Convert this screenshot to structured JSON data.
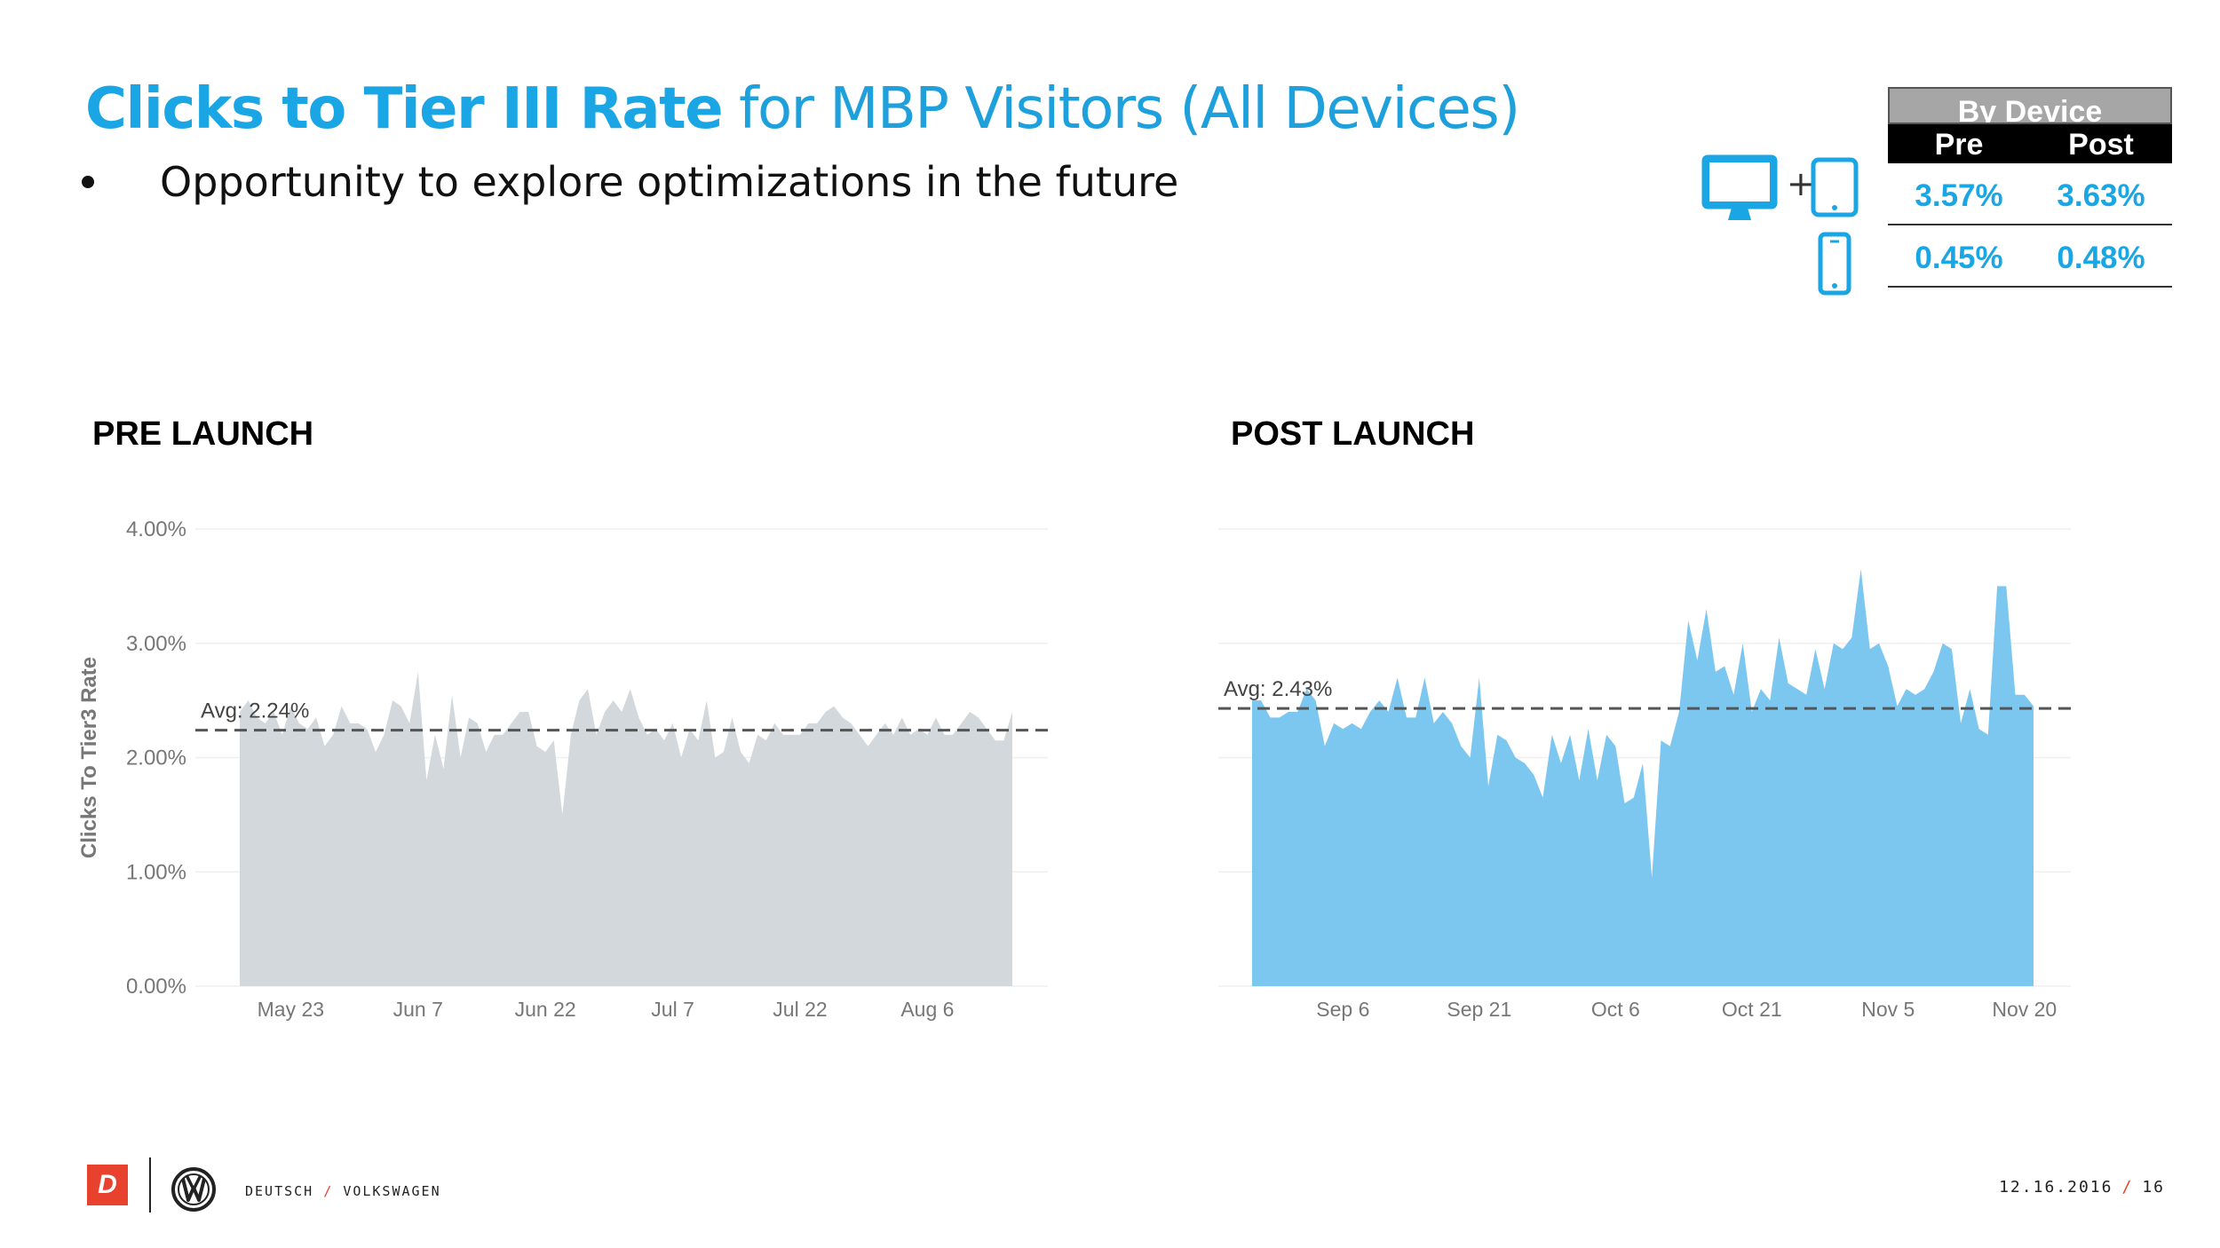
{
  "slide": {
    "title_bold": "Clicks to Tier III Rate",
    "title_rest": " for MBP Visitors (All Devices)",
    "bullet": "Opportunity to explore optimizations in the future"
  },
  "device_table": {
    "header": "By Device",
    "col_pre": "Pre",
    "col_post": "Post",
    "plus": "+",
    "rows": [
      {
        "device": "desktop-tablet",
        "pre": "3.57%",
        "post": "3.63%"
      },
      {
        "device": "mobile",
        "pre": "0.45%",
        "post": "0.48%"
      }
    ]
  },
  "colors": {
    "accent": "#1aa6e4",
    "pre_fill": "#d2d8db",
    "post_fill": "#7cc7f0",
    "footer_red": "#e8412e"
  },
  "labels": {
    "pre": "PRE LAUNCH",
    "post": "POST LAUNCH"
  },
  "chart_data": [
    {
      "type": "area",
      "title": "PRE LAUNCH",
      "ylabel": "Clicks To Tier3 Rate",
      "xlabel": "",
      "ylim": [
        0,
        4
      ],
      "yticks": [
        0,
        1,
        2,
        3,
        4
      ],
      "ytick_labels": [
        "0.00%",
        "1.00%",
        "2.00%",
        "3.00%",
        "4.00%"
      ],
      "x_start_day": 0,
      "xticks": [
        {
          "day": 6,
          "label": "May 23"
        },
        {
          "day": 21,
          "label": "Jun 7"
        },
        {
          "day": 36,
          "label": "Jun 22"
        },
        {
          "day": 51,
          "label": "Jul 7"
        },
        {
          "day": 66,
          "label": "Jul 22"
        },
        {
          "day": 81,
          "label": "Aug 6"
        }
      ],
      "avg": 2.24,
      "avg_label": "Avg: 2.24%",
      "values": [
        2.4,
        2.5,
        2.35,
        2.3,
        2.4,
        2.2,
        2.45,
        2.3,
        2.25,
        2.35,
        2.1,
        2.2,
        2.45,
        2.3,
        2.3,
        2.25,
        2.05,
        2.2,
        2.5,
        2.45,
        2.3,
        2.75,
        1.8,
        2.2,
        1.9,
        2.55,
        2.0,
        2.35,
        2.3,
        2.05,
        2.2,
        2.2,
        2.3,
        2.4,
        2.4,
        2.1,
        2.05,
        2.15,
        1.5,
        2.2,
        2.5,
        2.6,
        2.2,
        2.4,
        2.5,
        2.4,
        2.6,
        2.35,
        2.2,
        2.25,
        2.15,
        2.3,
        2.0,
        2.25,
        2.15,
        2.5,
        2.0,
        2.05,
        2.35,
        2.05,
        1.95,
        2.2,
        2.15,
        2.3,
        2.2,
        2.2,
        2.2,
        2.3,
        2.3,
        2.4,
        2.45,
        2.35,
        2.3,
        2.2,
        2.1,
        2.2,
        2.3,
        2.2,
        2.35,
        2.2,
        2.25,
        2.2,
        2.35,
        2.2,
        2.2,
        2.3,
        2.4,
        2.35,
        2.25,
        2.15,
        2.15,
        2.4
      ]
    },
    {
      "type": "area",
      "title": "POST LAUNCH",
      "ylabel": "",
      "xlabel": "",
      "ylim": [
        0,
        4
      ],
      "yticks": [
        0,
        1,
        2,
        3,
        4
      ],
      "x_start_day": 0,
      "xticks": [
        {
          "day": 10,
          "label": "Sep 6"
        },
        {
          "day": 25,
          "label": "Sep 21"
        },
        {
          "day": 40,
          "label": "Oct 6"
        },
        {
          "day": 55,
          "label": "Oct 21"
        },
        {
          "day": 70,
          "label": "Nov 5"
        },
        {
          "day": 85,
          "label": "Nov 20"
        }
      ],
      "avg": 2.43,
      "avg_label": "Avg: 2.43%",
      "values": [
        2.5,
        2.5,
        2.35,
        2.35,
        2.4,
        2.4,
        2.6,
        2.5,
        2.1,
        2.3,
        2.25,
        2.3,
        2.25,
        2.4,
        2.5,
        2.4,
        2.7,
        2.35,
        2.35,
        2.7,
        2.3,
        2.4,
        2.3,
        2.1,
        2.0,
        2.7,
        1.75,
        2.2,
        2.15,
        2.0,
        1.95,
        1.85,
        1.65,
        2.2,
        1.95,
        2.2,
        1.8,
        2.25,
        1.8,
        2.2,
        2.1,
        1.6,
        1.65,
        1.95,
        0.95,
        2.15,
        2.1,
        2.4,
        3.2,
        2.85,
        3.3,
        2.75,
        2.8,
        2.55,
        3.0,
        2.4,
        2.6,
        2.5,
        3.05,
        2.65,
        2.6,
        2.55,
        2.95,
        2.6,
        3.0,
        2.95,
        3.05,
        3.65,
        2.95,
        3.0,
        2.8,
        2.45,
        2.6,
        2.55,
        2.6,
        2.75,
        3.0,
        2.95,
        2.3,
        2.6,
        2.25,
        2.2,
        3.5,
        3.5,
        2.55,
        2.55,
        2.45
      ]
    }
  ],
  "footer": {
    "logo_letter": "D",
    "brand_left": "DEUTSCH",
    "brand_slash": "/",
    "brand_right": "VOLKSWAGEN",
    "date": "12.16.2016",
    "page": "16"
  }
}
